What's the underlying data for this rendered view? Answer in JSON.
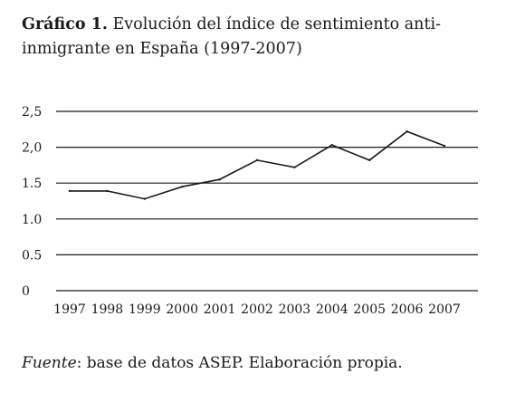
{
  "title": {
    "label": "Gráfico 1.",
    "text": "Evolución del índice de sentimiento anti-inmigrante en España (1997-2007)"
  },
  "source": {
    "label": "Fuente",
    "text": ": base de datos ASEP. Elaboración propia."
  },
  "chart_data": {
    "type": "line",
    "title": "Evolución del índice de sentimiento anti-inmigrante en España (1997-2007)",
    "xlabel": "",
    "ylabel": "",
    "categories": [
      "1997",
      "1998",
      "1999",
      "2000",
      "2001",
      "2002",
      "2003",
      "2004",
      "2005",
      "2006",
      "2007"
    ],
    "values": [
      1.39,
      1.39,
      1.28,
      1.45,
      1.55,
      1.82,
      1.72,
      2.03,
      1.82,
      2.22,
      2.02
    ],
    "ylim": [
      0,
      2.5
    ],
    "yticks": [
      0,
      0.5,
      1.0,
      1.5,
      2.0,
      2.5
    ],
    "ytick_labels": [
      "0",
      "0.5",
      "1.0",
      "1.5",
      "2,0",
      "2,5"
    ],
    "grid": true,
    "legend": "none",
    "colors": {
      "line": "#1a1a1a",
      "grid": "#1a1a1a"
    }
  }
}
